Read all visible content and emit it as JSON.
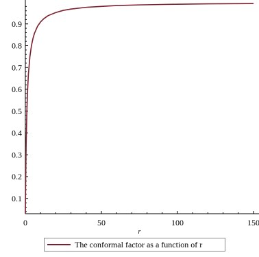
{
  "chart_data": {
    "type": "line",
    "title": "",
    "xlabel": "r",
    "ylabel": "",
    "xlim": [
      0,
      150
    ],
    "ylim": [
      0.03,
      1.0
    ],
    "xticks": [
      0,
      50,
      100,
      150
    ],
    "yticks": [
      0.1,
      0.2,
      0.3,
      0.4,
      0.5,
      0.6,
      0.7,
      0.8,
      0.9
    ],
    "legend_position": "bottom",
    "grid": false,
    "series": [
      {
        "name": "The conformal factor as a function of r",
        "color": "#7b1f2e",
        "x": [
          0,
          0.2,
          0.5,
          1,
          1.5,
          2,
          3,
          4,
          5,
          6,
          8,
          10,
          12,
          15,
          20,
          25,
          30,
          40,
          50,
          60,
          75,
          90,
          100,
          120,
          150
        ],
        "y": [
          0.03,
          0.17,
          0.34,
          0.5,
          0.6,
          0.67,
          0.75,
          0.8,
          0.833,
          0.857,
          0.889,
          0.909,
          0.923,
          0.938,
          0.952,
          0.962,
          0.968,
          0.976,
          0.98,
          0.984,
          0.987,
          0.989,
          0.99,
          0.992,
          0.993
        ]
      }
    ]
  }
}
